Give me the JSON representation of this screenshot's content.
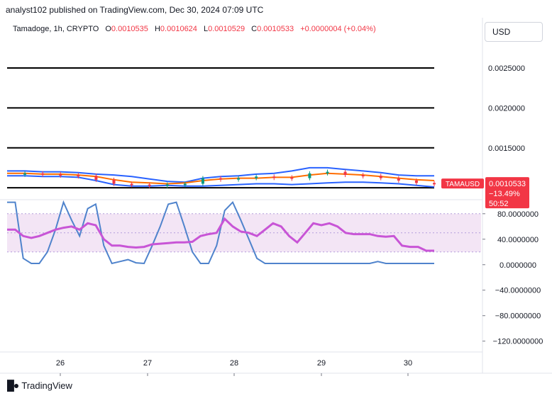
{
  "header": {
    "published": "analyst102 published on TradingView.com, Dec 30, 2024 07:09 UTC"
  },
  "legend": {
    "symbol": "Tamadoge, 1h, CRYPTO",
    "open_label": "O",
    "open": "0.0010535",
    "high_label": "H",
    "high": "0.0010624",
    "low_label": "L",
    "low": "0.0010529",
    "close_label": "C",
    "close": "0.0010533",
    "change": "+0.0000004 (+0.04%)"
  },
  "currency": "USD",
  "price_tag": {
    "symbol": "TAMAUSD",
    "price": "0.0010533",
    "change": "−13.49%",
    "countdown": "50:52"
  },
  "brand": {
    "name": "TradingView"
  },
  "colors": {
    "bb": "#2962ff",
    "ma": "#ff6d00",
    "k": "#4f83cc",
    "d": "#c855d6",
    "up": "#089981",
    "down": "#f23645",
    "tag": "#f23645",
    "band_fill": "#f3e5f5"
  },
  "chart_data": [
    {
      "type": "line",
      "name": "price",
      "y_ticks": [
        "0.0025000",
        "0.0020000",
        "0.0015000"
      ],
      "ylim": [
        0.00085,
        0.00282
      ],
      "horizontal_lines": [
        0.0025,
        0.002,
        0.0015,
        0.001
      ],
      "x_ticks": [
        "26",
        "27",
        "28",
        "29",
        "30"
      ],
      "bb_upper": [
        0.00121,
        0.00121,
        0.0012,
        0.0012,
        0.00119,
        0.00117,
        0.00116,
        0.00114,
        0.00111,
        0.00108,
        0.00107,
        0.00112,
        0.00114,
        0.00115,
        0.00117,
        0.00118,
        0.00121,
        0.00125,
        0.00125,
        0.00123,
        0.00121,
        0.00119,
        0.00116,
        0.00115,
        0.00115
      ],
      "bb_middle": [
        0.00118,
        0.00118,
        0.00117,
        0.00117,
        0.00116,
        0.00114,
        0.0011,
        0.00107,
        0.00106,
        0.00105,
        0.00106,
        0.00109,
        0.00111,
        0.00112,
        0.00112,
        0.00113,
        0.00113,
        0.00116,
        0.00118,
        0.00117,
        0.00116,
        0.00114,
        0.00112,
        0.0011,
        0.00109
      ],
      "bb_lower": [
        0.00115,
        0.00115,
        0.00114,
        0.00114,
        0.00113,
        0.00109,
        0.00104,
        0.00102,
        0.00102,
        0.00103,
        0.00102,
        0.00102,
        0.00103,
        0.00104,
        0.00105,
        0.00105,
        0.00104,
        0.00105,
        0.00106,
        0.00107,
        0.00107,
        0.00106,
        0.00105,
        0.00103,
        0.00101
      ],
      "close": [
        0.00117,
        0.00118,
        0.00117,
        0.00116,
        0.00115,
        0.0011,
        0.00105,
        0.00104,
        0.00103,
        0.00104,
        0.00105,
        0.00112,
        0.00111,
        0.00112,
        0.00114,
        0.00113,
        0.00112,
        0.00118,
        0.0012,
        0.00116,
        0.00115,
        0.00112,
        0.00109,
        0.00106,
        0.001053
      ]
    },
    {
      "type": "line",
      "name": "oscillator",
      "y_ticks": [
        "80.0000000",
        "40.0000000",
        "0.0000000",
        "−40.0000000",
        "−80.0000000",
        "−120.0000000"
      ],
      "ylim": [
        -137,
        102
      ],
      "band": [
        20,
        80
      ],
      "k": [
        98,
        98,
        10,
        2,
        2,
        20,
        55,
        98,
        70,
        45,
        88,
        95,
        30,
        2,
        5,
        8,
        3,
        2,
        30,
        60,
        95,
        98,
        60,
        20,
        2,
        2,
        30,
        85,
        98,
        70,
        40,
        10,
        2,
        2,
        2,
        2,
        2,
        2,
        2,
        2,
        2,
        2,
        2,
        2,
        2,
        2,
        5,
        2,
        2,
        2,
        2,
        2,
        2,
        2
      ],
      "d": [
        55,
        55,
        45,
        42,
        45,
        50,
        55,
        58,
        60,
        55,
        65,
        62,
        40,
        30,
        30,
        28,
        27,
        28,
        32,
        33,
        34,
        35,
        35,
        36,
        45,
        48,
        50,
        72,
        60,
        52,
        50,
        45,
        55,
        65,
        60,
        45,
        35,
        50,
        65,
        62,
        65,
        60,
        50,
        48,
        48,
        48,
        45,
        44,
        45,
        30,
        28,
        28,
        22,
        22
      ]
    }
  ]
}
